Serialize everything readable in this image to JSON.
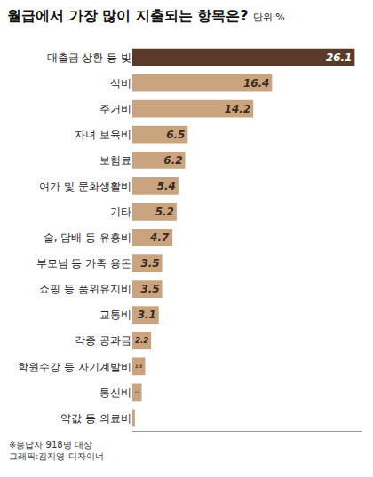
{
  "chart_data": {
    "type": "bar",
    "orientation": "horizontal",
    "title": "월급에서 가장 많이 지출되는 항목은?",
    "subtitle": "단위:%",
    "categories": [
      "대출금 상환 등 빚",
      "식비",
      "주거비",
      "자녀 보육비",
      "보험료",
      "여가 및 문화생활비",
      "기타",
      "술, 담배 등 유흥비",
      "부모님 등 가족 용돈",
      "쇼핑 등 품위유지비",
      "교통비",
      "각종 공과금",
      "학원수강 등 자기계발비",
      "통신비",
      "약값 등 의료비"
    ],
    "values": [
      26.1,
      16.4,
      14.2,
      6.5,
      6.2,
      5.4,
      5.2,
      4.7,
      3.5,
      3.5,
      3.1,
      2.2,
      1.5,
      1.1,
      0.3
    ],
    "colors": [
      "#5a3b2b",
      "#c9a47f",
      "#c9a47f",
      "#c9a47f",
      "#c9a47f",
      "#c9a47f",
      "#c9a47f",
      "#c9a47f",
      "#c9a47f",
      "#c9a47f",
      "#c9a47f",
      "#c9a47f",
      "#c9a47f",
      "#c9a47f",
      "#c9a47f"
    ],
    "xlim": [
      0,
      27
    ],
    "grid": false,
    "data_labels": true,
    "tick_labels": "y",
    "annotations": [
      "※응답자 918명 대상",
      "그래픽:김지영 디자이너"
    ]
  }
}
